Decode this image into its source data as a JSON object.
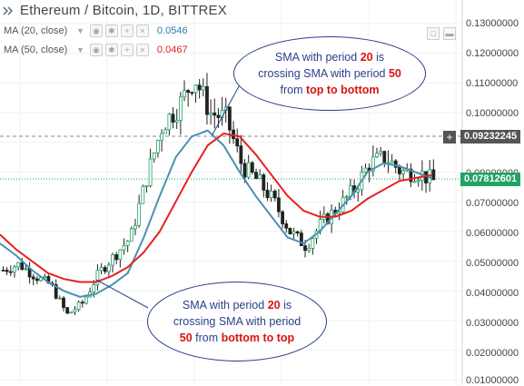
{
  "header": {
    "symbol_title": "Ethereum / Bitcoin, 1D, BITTREX",
    "indicators": [
      {
        "label": "MA (20, close)",
        "value": "0.0546",
        "color": "#2f7bab"
      },
      {
        "label": "MA (50, close)",
        "value": "0.0467",
        "color": "#e02020"
      }
    ]
  },
  "colors": {
    "up": "#20a060",
    "down": "#222222",
    "sma20": "#4a90b0",
    "sma50": "#e82020",
    "annotation": "#2a3f8a",
    "highlight": "#d11111"
  },
  "price_axis": {
    "ticks": [
      "0.13000000",
      "0.12000000",
      "0.11000000",
      "0.10000000",
      "0.09000000",
      "0.08000000",
      "0.07000000",
      "0.06000000",
      "0.05000000",
      "0.04000000",
      "0.03000000",
      "0.02000000",
      "0.01000000"
    ],
    "crosshair_label": "0.09232245",
    "last_price_label": "0.07812601"
  },
  "annotations": {
    "top": {
      "l1a": "SMA with period ",
      "l1b": "20",
      "l1c": " is",
      "l2a": "crossing SMA with period ",
      "l2b": "50",
      "l3a": "from ",
      "l3b": "top to bottom"
    },
    "bottom": {
      "l1a": "SMA with period ",
      "l1b": "20",
      "l1c": " is",
      "l2a": "crossing SMA with period",
      "l3a": "50",
      "l3b": " from ",
      "l3c": "bottom to top"
    }
  },
  "chart_data": {
    "type": "line",
    "title": "Ethereum / Bitcoin, 1D, BITTREX",
    "xlabel": "",
    "ylabel": "",
    "ylim": [
      0.005,
      0.135
    ],
    "series": [
      {
        "name": "MA (20, close)",
        "values": [
          0.056,
          0.052,
          0.047,
          0.043,
          0.04,
          0.038,
          0.039,
          0.042,
          0.046,
          0.058,
          0.072,
          0.085,
          0.092,
          0.094,
          0.089,
          0.08,
          0.072,
          0.065,
          0.058,
          0.056,
          0.06,
          0.066,
          0.072,
          0.08,
          0.083,
          0.082,
          0.08,
          0.078
        ]
      },
      {
        "name": "MA (50, close)",
        "values": [
          0.059,
          0.054,
          0.05,
          0.046,
          0.044,
          0.043,
          0.043,
          0.045,
          0.048,
          0.053,
          0.06,
          0.07,
          0.08,
          0.089,
          0.093,
          0.092,
          0.086,
          0.079,
          0.072,
          0.067,
          0.065,
          0.065,
          0.067,
          0.071,
          0.074,
          0.077,
          0.078,
          0.079
        ]
      },
      {
        "name": "Close",
        "values": [
          0.047,
          0.049,
          0.045,
          0.042,
          0.032,
          0.036,
          0.046,
          0.052,
          0.058,
          0.078,
          0.096,
          0.102,
          0.112,
          0.1,
          0.098,
          0.082,
          0.077,
          0.07,
          0.06,
          0.055,
          0.063,
          0.068,
          0.074,
          0.083,
          0.085,
          0.08,
          0.08,
          0.077
        ]
      }
    ]
  }
}
